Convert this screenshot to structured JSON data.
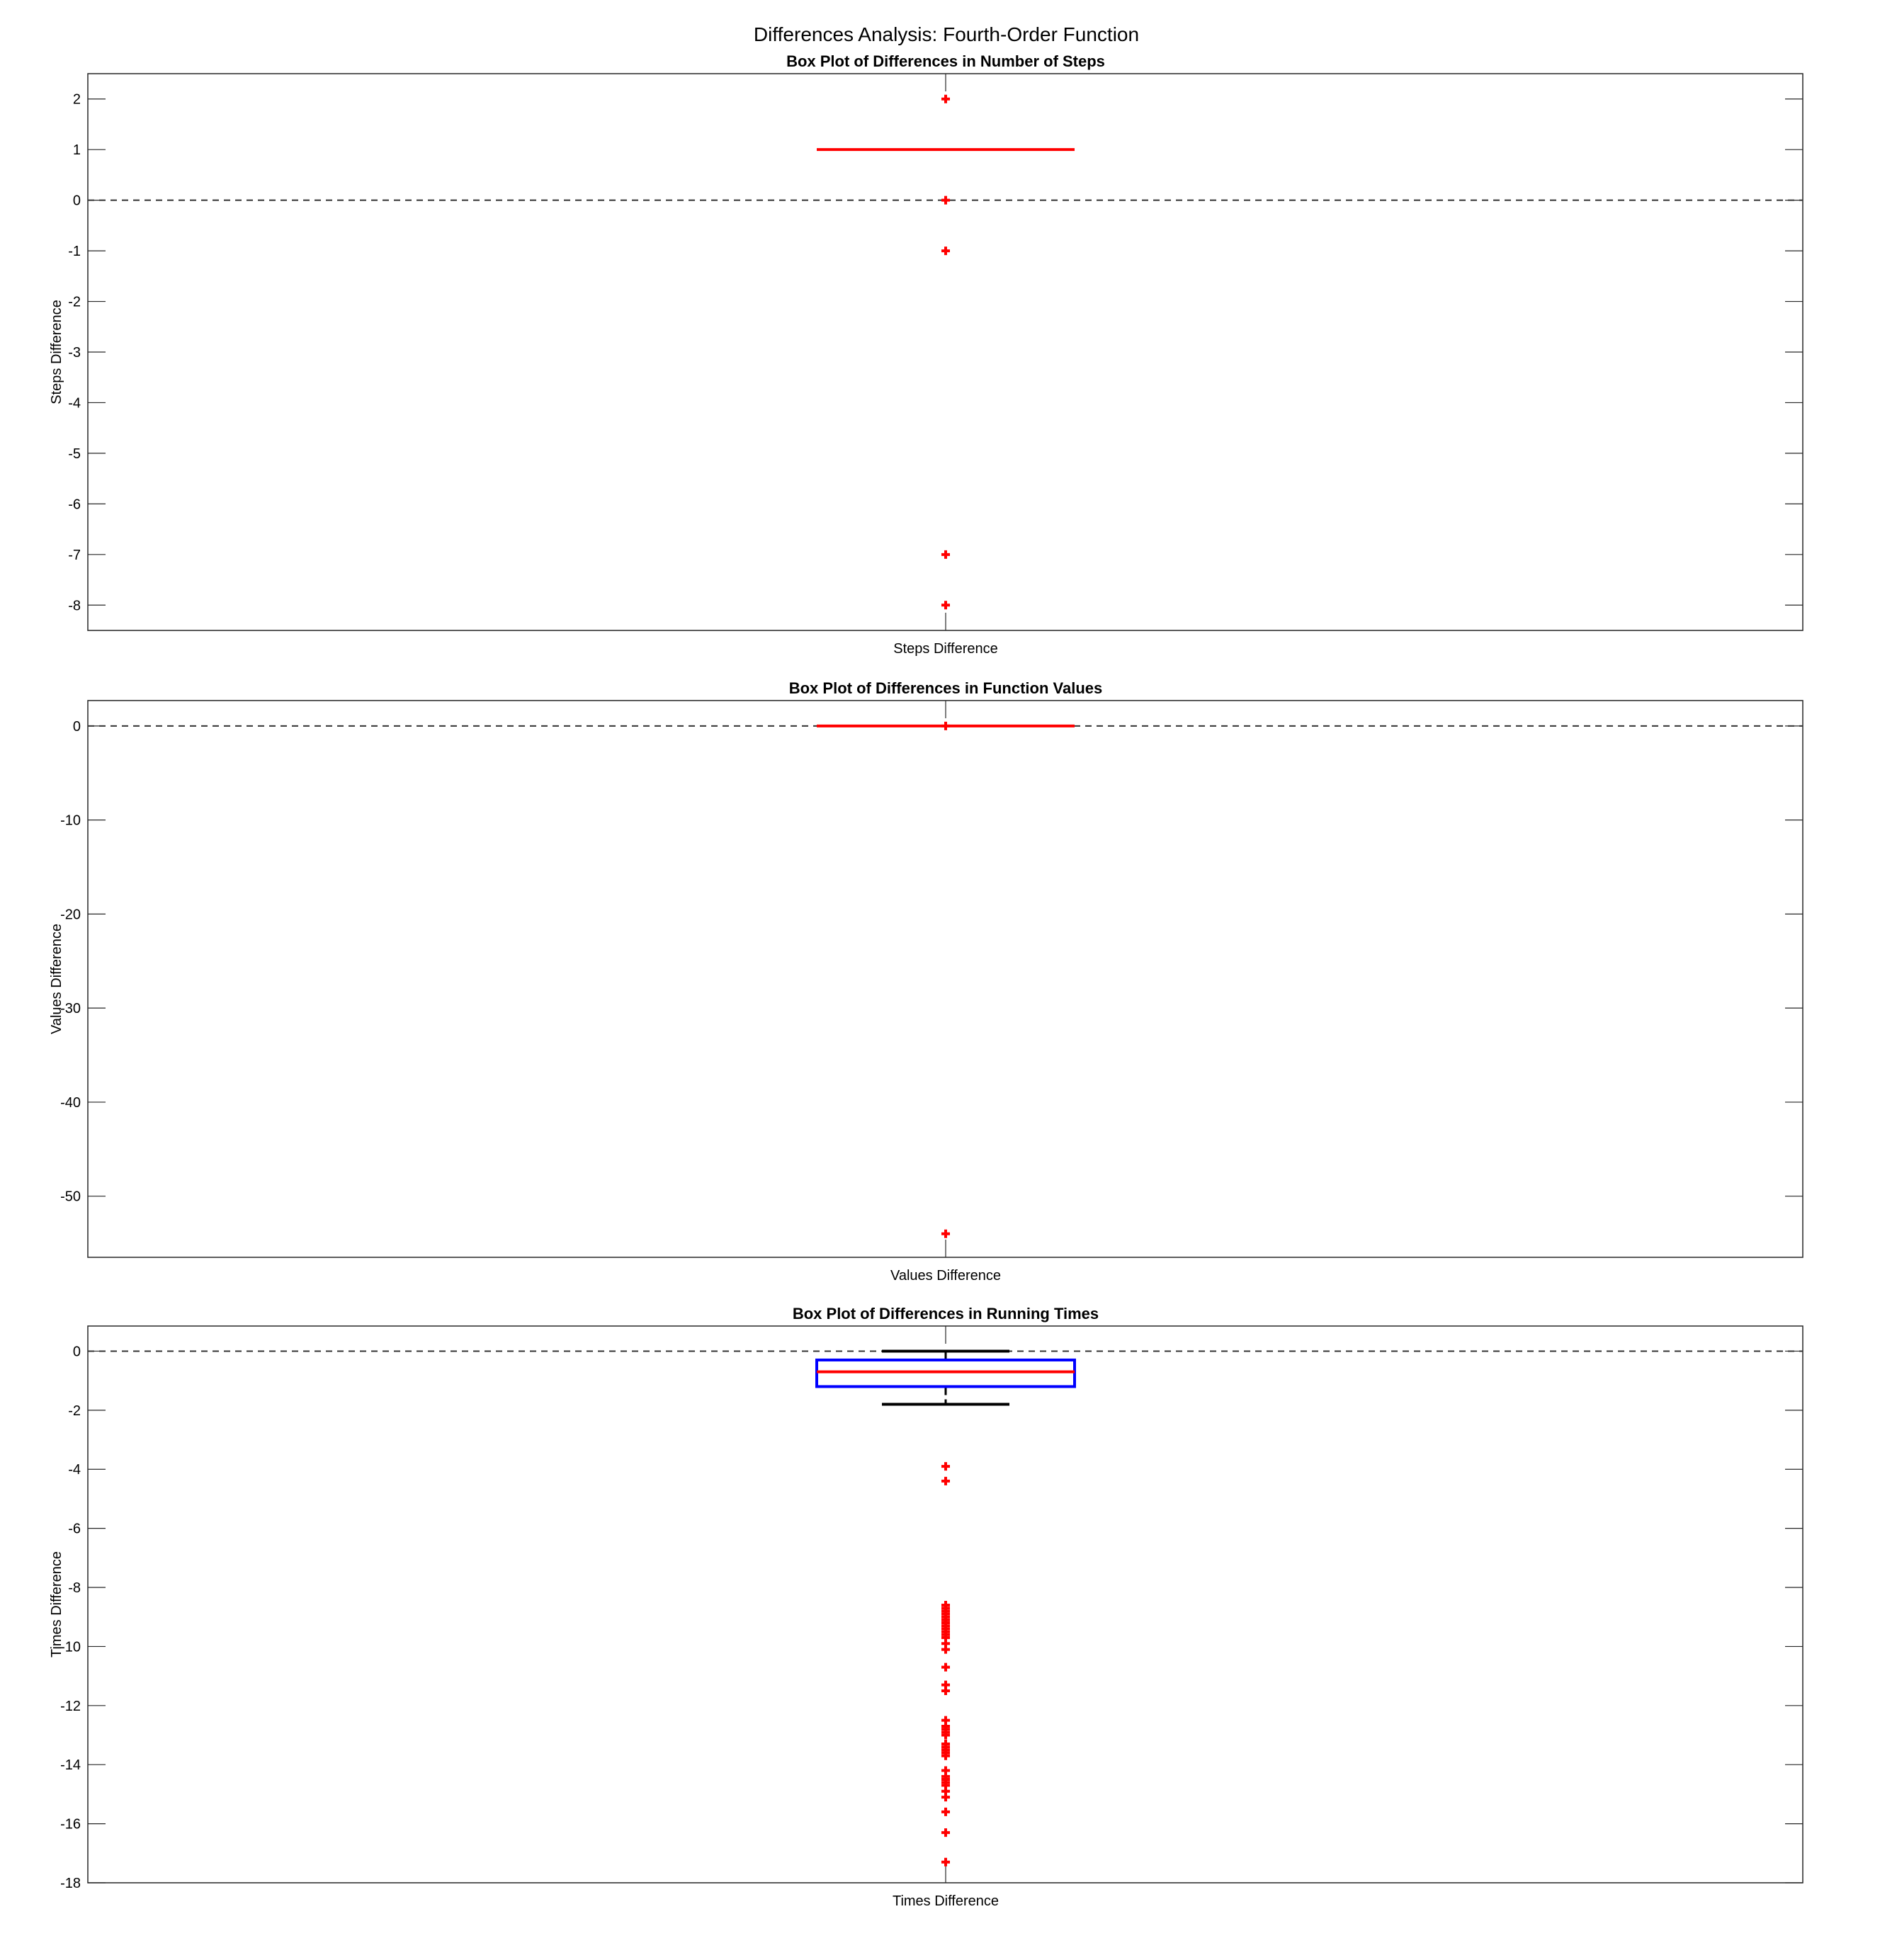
{
  "figure": {
    "title": "Differences Analysis: Fourth-Order Function"
  },
  "colors": {
    "box": "#0000ff",
    "median": "#ff0000",
    "whisker": "#000000",
    "outlier": "#ff0000",
    "zero_line": "#333333",
    "axes": "#262626"
  },
  "chart_data": [
    {
      "type": "boxplot",
      "title": "Box Plot of Differences in Number of Steps",
      "xlabel": "",
      "ylabel": "Steps Difference",
      "categories": [
        "Steps Difference"
      ],
      "ylim": [
        -8.5,
        2.5
      ],
      "yticks": [
        -8,
        -7,
        -6,
        -5,
        -4,
        -3,
        -2,
        -1,
        0,
        1,
        2
      ],
      "zero_line": true,
      "box": {
        "q1": 1,
        "median": 1,
        "q3": 1,
        "whisker_low": 1,
        "whisker_high": 1
      },
      "outliers": [
        2,
        0,
        -1,
        -7,
        -8
      ]
    },
    {
      "type": "boxplot",
      "title": "Box Plot of Differences in Function Values",
      "xlabel": "",
      "ylabel": "Values Difference",
      "categories": [
        "Values Difference"
      ],
      "ylim": [
        -56.5,
        2.7
      ],
      "yticks": [
        -50,
        -40,
        -30,
        -20,
        -10,
        0
      ],
      "zero_line": true,
      "box": {
        "q1": 0,
        "median": 0,
        "q3": 0,
        "whisker_low": 0,
        "whisker_high": 0
      },
      "outliers": [
        0,
        -54
      ]
    },
    {
      "type": "boxplot",
      "title": "Box Plot of Differences in Running Times",
      "xlabel": "",
      "ylabel": "Times Difference",
      "categories": [
        "Times Difference"
      ],
      "ylim": [
        -18,
        0.85
      ],
      "yticks": [
        -18,
        -16,
        -14,
        -12,
        -10,
        -8,
        -6,
        -4,
        -2,
        0
      ],
      "zero_line": true,
      "box": {
        "q1": -1.2,
        "median": -0.7,
        "q3": -0.3,
        "whisker_low": -1.8,
        "whisker_high": 0
      },
      "outliers": [
        -3.9,
        -4.4,
        -8.6,
        -8.7,
        -8.8,
        -8.9,
        -9.0,
        -9.1,
        -9.2,
        -9.3,
        -9.4,
        -9.5,
        -9.6,
        -9.7,
        -9.9,
        -10.1,
        -10.7,
        -11.3,
        -11.5,
        -12.5,
        -12.7,
        -12.8,
        -12.9,
        -13.0,
        -13.3,
        -13.4,
        -13.5,
        -13.6,
        -13.7,
        -14.2,
        -14.4,
        -14.5,
        -14.6,
        -14.7,
        -14.9,
        -15.1,
        -15.6,
        -16.3,
        -17.3
      ]
    }
  ]
}
